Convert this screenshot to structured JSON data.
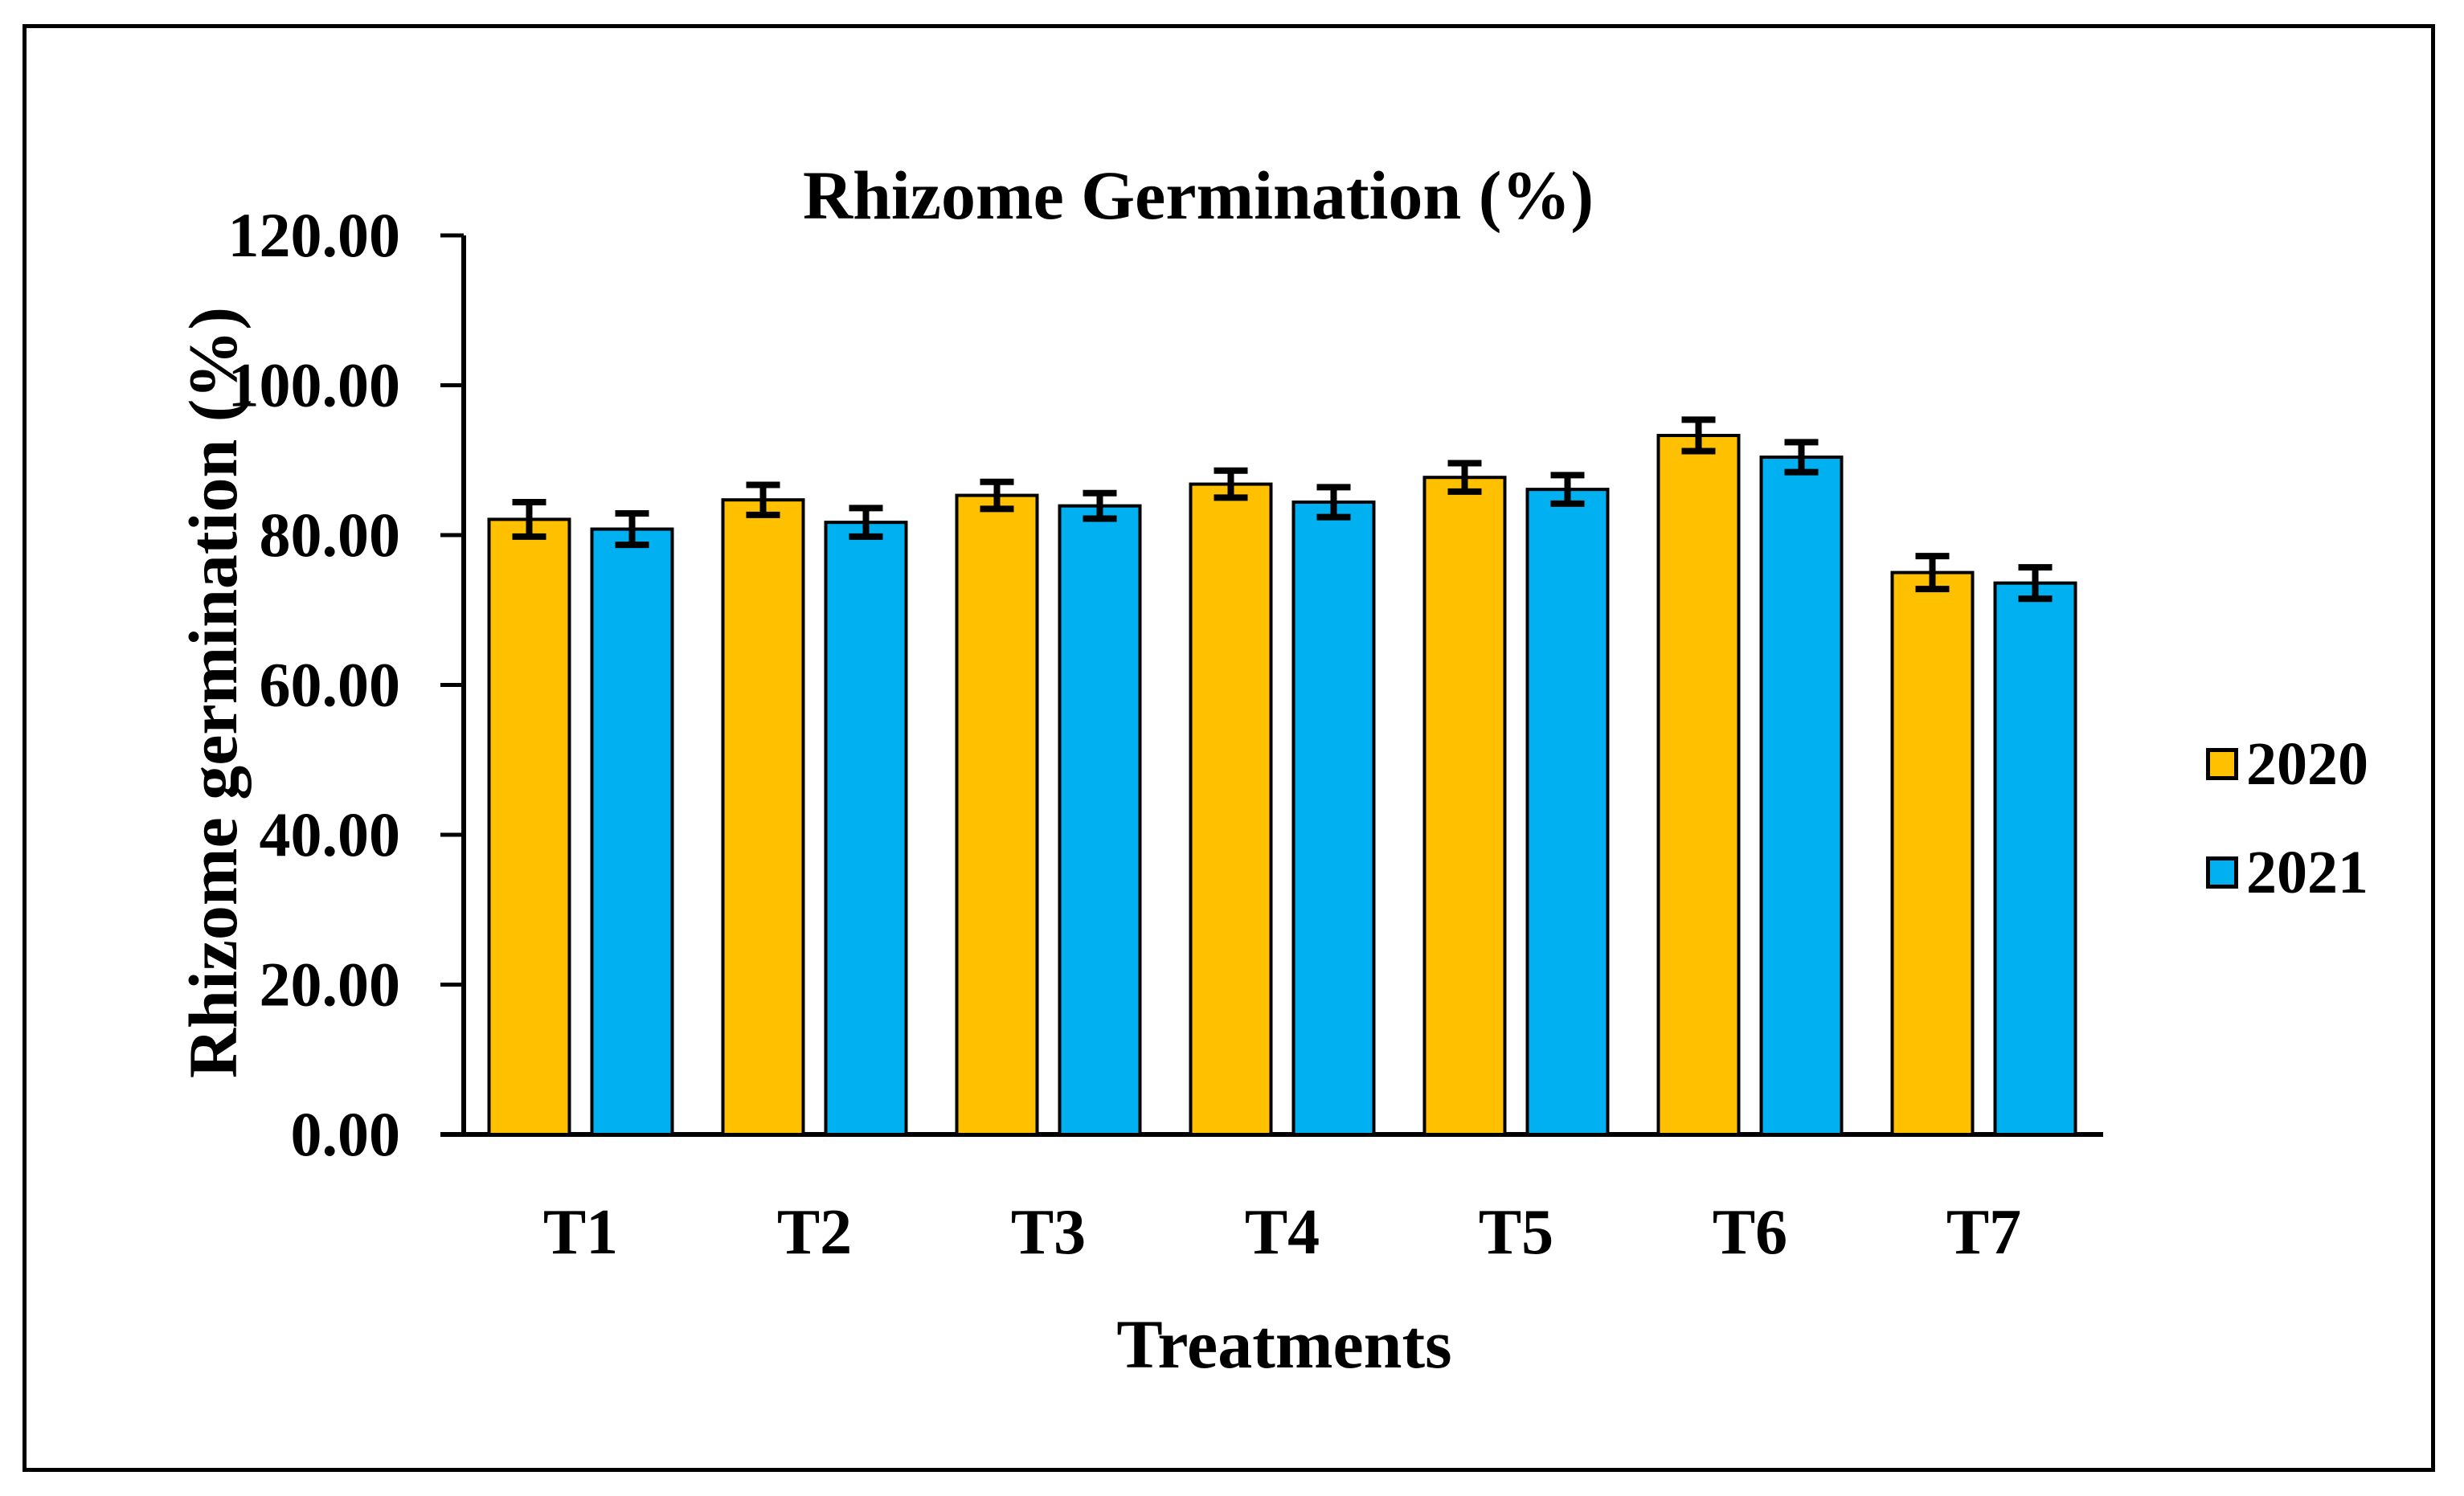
{
  "chart_data": {
    "type": "bar",
    "title": "Rhizome Germination (%)",
    "xlabel": "Treatments",
    "ylabel": "Rhizome germination (%)",
    "categories": [
      "T1",
      "T2",
      "T3",
      "T4",
      "T5",
      "T6",
      "T7"
    ],
    "series": [
      {
        "name": "2020",
        "color": "#FFC000",
        "values": [
          82.1,
          84.7,
          85.3,
          86.8,
          87.7,
          93.3,
          75.0
        ],
        "errors": [
          2.3,
          2.0,
          1.8,
          1.8,
          1.9,
          2.1,
          2.2
        ]
      },
      {
        "name": "2021",
        "color": "#00B0F0",
        "values": [
          80.8,
          81.7,
          83.9,
          84.4,
          86.1,
          90.4,
          73.6
        ],
        "errors": [
          2.1,
          1.9,
          1.7,
          2.0,
          1.9,
          2.0,
          2.1
        ]
      }
    ],
    "ylim": [
      0,
      120
    ],
    "ytick_step": 20,
    "ytick_labels": [
      "0.00",
      "20.00",
      "40.00",
      "60.00",
      "80.00",
      "100.00",
      "120.00"
    ],
    "grid": false,
    "legend_position": "right",
    "error_bars": true,
    "axis_color": "#000000",
    "bar_border_color": "#000000",
    "error_bar_color": "#000000",
    "text_color": "#000000"
  }
}
